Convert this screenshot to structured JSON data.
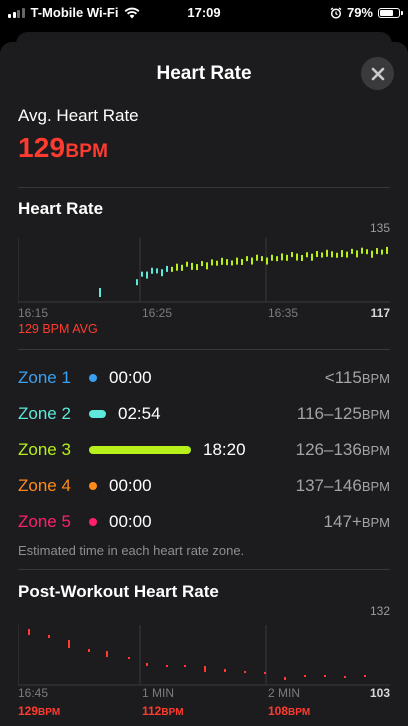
{
  "status_bar": {
    "carrier": "T-Mobile Wi-Fi",
    "time": "17:09",
    "battery": "79%",
    "battery_level": 0.79
  },
  "modal": {
    "title": "Heart Rate"
  },
  "avg": {
    "label": "Avg. Heart Rate",
    "value": "129",
    "unit": "BPM"
  },
  "hr_chart": {
    "title": "Heart Rate",
    "y_max_label": "135",
    "y_min_label": "117",
    "x_labels": [
      "16:15",
      "16:25",
      "16:35"
    ],
    "avg_label": "129 BPM AVG"
  },
  "zones": [
    {
      "name": "Zone 1",
      "time": "00:00",
      "range": "<115",
      "unit": "BPM",
      "color": "#3aa0f0",
      "fraction": 0.0
    },
    {
      "name": "Zone 2",
      "time": "02:54",
      "range": "116–125",
      "unit": "BPM",
      "color": "#5ee8dc",
      "fraction": 0.14
    },
    {
      "name": "Zone 3",
      "time": "18:20",
      "range": "126–136",
      "unit": "BPM",
      "color": "#b7f01a",
      "fraction": 0.86
    },
    {
      "name": "Zone 4",
      "time": "00:00",
      "range": "137–146",
      "unit": "BPM",
      "color": "#ff8b1a",
      "fraction": 0.0
    },
    {
      "name": "Zone 5",
      "time": "00:00",
      "range": "147+",
      "unit": "BPM",
      "color": "#ff1f6b",
      "fraction": 0.0
    }
  ],
  "zones_note": "Estimated time in each heart rate zone.",
  "post_chart": {
    "title": "Post-Workout Heart Rate",
    "y_max_label": "132",
    "y_min_label": "103",
    "x_labels": [
      "16:45",
      "1 MIN",
      "2 MIN"
    ],
    "values": [
      {
        "value": "129",
        "unit": "BPM"
      },
      {
        "value": "112",
        "unit": "BPM"
      },
      {
        "value": "108",
        "unit": "BPM"
      }
    ]
  }
}
